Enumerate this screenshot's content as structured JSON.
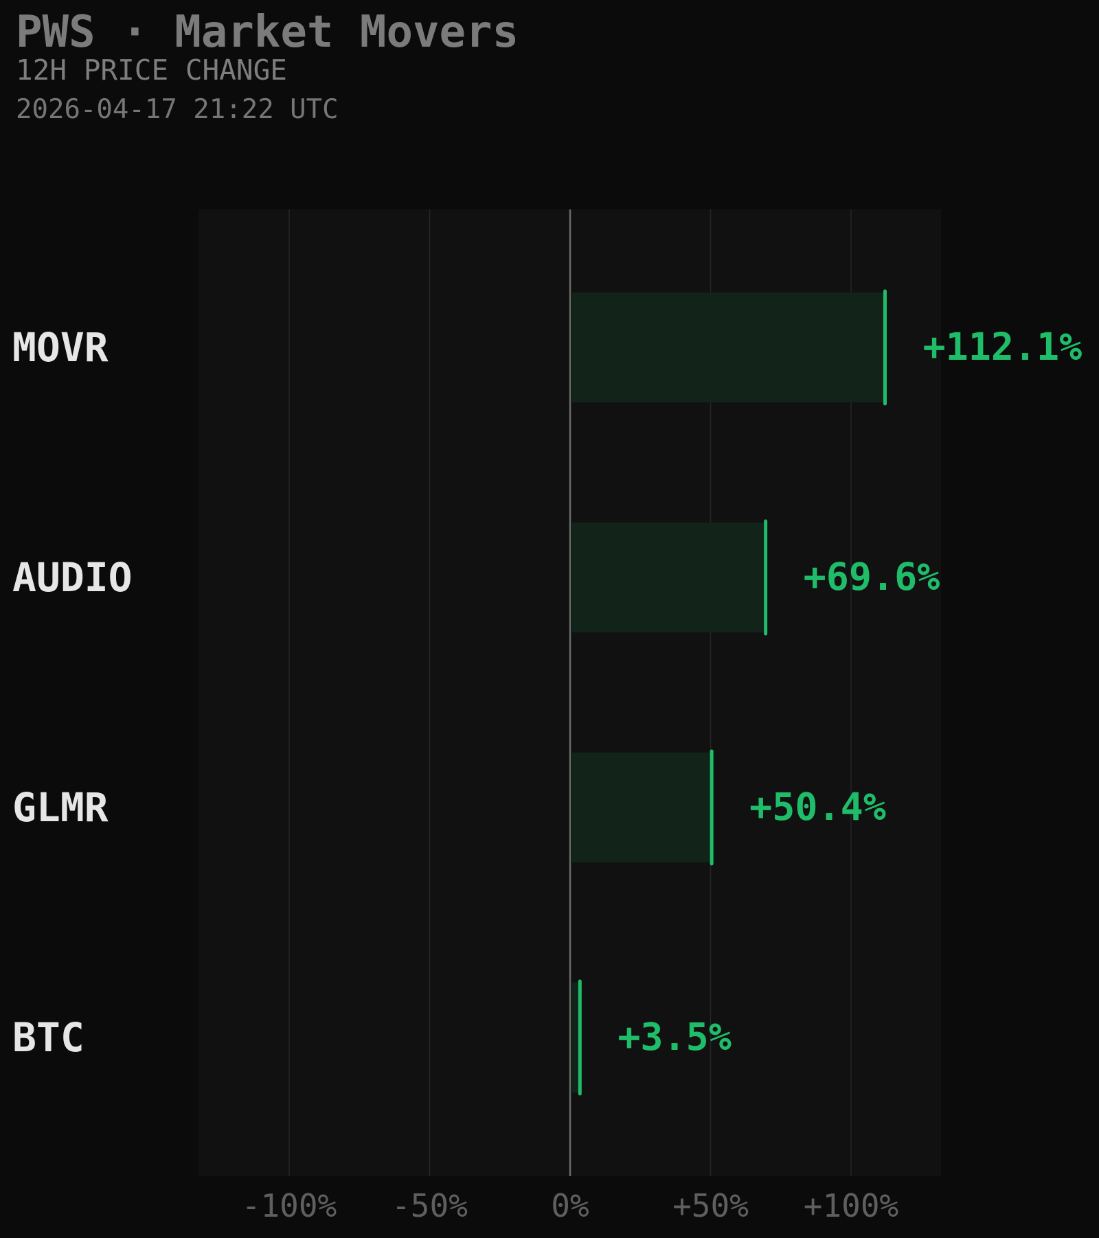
{
  "header": {
    "title": "PWS · Market Movers",
    "subtitle": "12H PRICE CHANGE",
    "timestamp": "2026-04-17 21:22 UTC"
  },
  "colors": {
    "background": "#0b0b0b",
    "plot_background": "#111111",
    "positive": "#1fbd6a",
    "bar_fill": "#12241a",
    "label_text": "#e6e6e6",
    "tick_text": "#5f5f5f",
    "grid": "#262626",
    "zero_line": "#6a6a6a"
  },
  "chart_data": {
    "type": "bar",
    "orientation": "horizontal",
    "categories": [
      "MOVR",
      "AUDIO",
      "GLMR",
      "BTC"
    ],
    "values": [
      112.1,
      69.6,
      50.4,
      3.5
    ],
    "value_labels": [
      "+112.1%",
      "+69.6%",
      "+50.4%",
      "+3.5%"
    ],
    "xlim": [
      -132,
      132
    ],
    "xticks": [
      -100,
      -50,
      0,
      50,
      100
    ],
    "xtick_labels": [
      "-100%",
      "-50%",
      "0%",
      "+50%",
      "+100%"
    ],
    "grid": "vertical",
    "xlabel": "",
    "ylabel": ""
  }
}
